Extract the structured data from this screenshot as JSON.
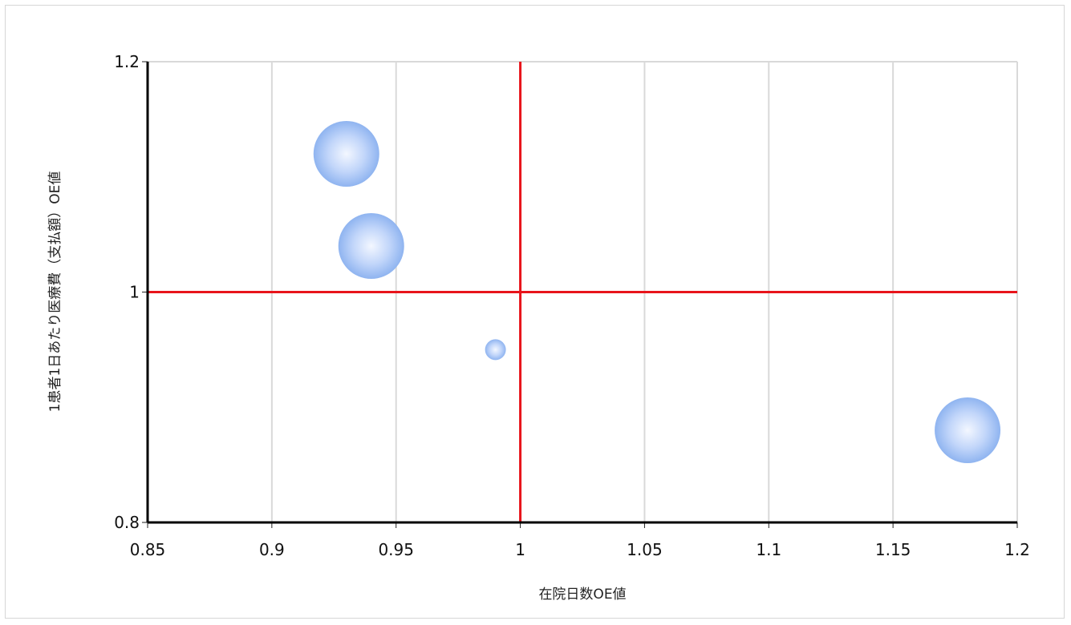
{
  "chart_data": {
    "type": "bubble",
    "xlabel": "在院日数OE値",
    "ylabel": "1患者1日あたり医療費（支払額）OE値",
    "xlim": [
      0.85,
      1.2
    ],
    "ylim": [
      0.8,
      1.2
    ],
    "x_ticks": [
      "0.85",
      "0.9",
      "0.95",
      "1",
      "1.05",
      "1.1",
      "1.15",
      "1.2"
    ],
    "y_ticks": [
      "0.8",
      "1",
      "1.2"
    ],
    "reference_lines": {
      "x": 1,
      "y": 1,
      "color": "#e8141b"
    },
    "grid": "vertical",
    "bubble_color": "#8fb4f0",
    "points": [
      {
        "x": 0.93,
        "y": 1.12,
        "size": 1.0
      },
      {
        "x": 0.94,
        "y": 1.04,
        "size": 1.0
      },
      {
        "x": 0.99,
        "y": 0.95,
        "size": 0.1
      },
      {
        "x": 1.18,
        "y": 0.88,
        "size": 1.0
      }
    ]
  }
}
